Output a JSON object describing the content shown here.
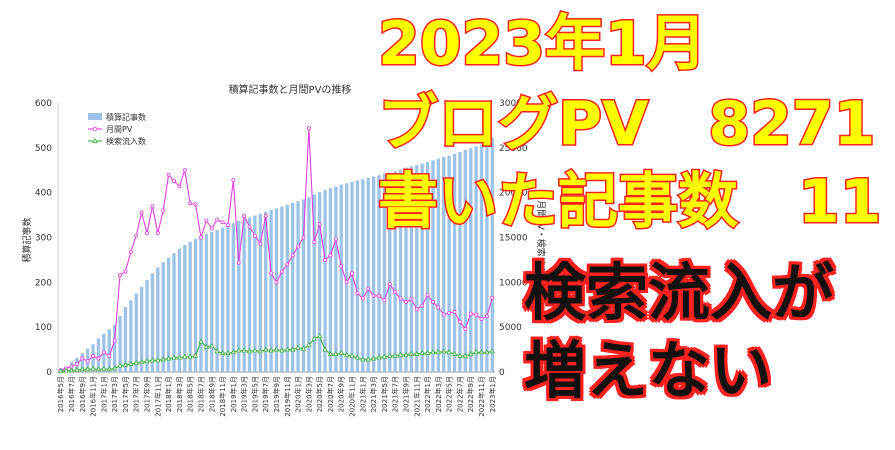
{
  "chart_data": {
    "type": "bar+line",
    "title": "積算記事数と月間PVの推移",
    "ylabel": "積算記事数",
    "y2label": "月間PV・検索流入数",
    "ylim": [
      0,
      600
    ],
    "y2lim": [
      0,
      30000
    ],
    "yticks": [
      "0",
      "100",
      "200",
      "300",
      "400",
      "500",
      "600"
    ],
    "y2ticks": [
      "0",
      "5000",
      "10000",
      "15000",
      "20000",
      "25000",
      "30000"
    ],
    "legend_position": "top-left",
    "categories": [
      "2016年5月",
      "2016年6月",
      "2016年7月",
      "2016年8月",
      "2016年9月",
      "2016年10月",
      "2016年11月",
      "2016年12月",
      "2017年1月",
      "2017年2月",
      "2017年3月",
      "2017年4月",
      "2017年5月",
      "2017年6月",
      "2017年7月",
      "2017年8月",
      "2017年9月",
      "2017年10月",
      "2017年11月",
      "2017年12月",
      "2018年1月",
      "2018年2月",
      "2018年3月",
      "2018年4月",
      "2018年5月",
      "2018年6月",
      "2018年7月",
      "2018年8月",
      "2018年9月",
      "2018年10月",
      "2018年11月",
      "2018年12月",
      "2019年1月",
      "2019年2月",
      "2019年3月",
      "2019年4月",
      "2019年5月",
      "2019年6月",
      "2019年7月",
      "2019年8月",
      "2019年9月",
      "2019年10月",
      "2019年11月",
      "2019年12月",
      "2020年1月",
      "2020年2月",
      "2020年3月",
      "2020年4月",
      "2020年5月",
      "2020年6月",
      "2020年7月",
      "2020年8月",
      "2020年9月",
      "2020年10月",
      "2020年11月",
      "2020年12月",
      "2021年1月",
      "2021年2月",
      "2021年3月",
      "2021年4月",
      "2021年5月",
      "2021年6月",
      "2021年7月",
      "2021年8月",
      "2021年9月",
      "2021年10月",
      "2021年11月",
      "2021年12月",
      "2022年1月",
      "2022年2月",
      "2022年3月",
      "2022年4月",
      "2022年5月",
      "2022年6月",
      "2022年7月",
      "2022年8月",
      "2022年9月",
      "2022年10月",
      "2022年11月",
      "2022年12月",
      "2023年1月"
    ],
    "tick_labels": [
      "2016年5月",
      "2016年7月",
      "2016年9月",
      "2016年11月",
      "2017年1月",
      "2017年3月",
      "2017年5月",
      "2017年7月",
      "2017年9月",
      "2017年11月",
      "2018年1月",
      "2018年3月",
      "2018年5月",
      "2018年7月",
      "2018年9月",
      "2018年11月",
      "2019年1月",
      "2019年3月",
      "2019年5月",
      "2019年7月",
      "2019年9月",
      "2019年11月",
      "2020年1月",
      "2020年3月",
      "2020年5月",
      "2020年7月",
      "2020年9月",
      "2020年11月",
      "2021年1月",
      "2021年3月",
      "2021年5月",
      "2021年7月",
      "2021年9月",
      "2021年11月",
      "2022年1月",
      "2022年3月",
      "2022年5月",
      "2022年7月",
      "2022年9月",
      "2022年11月",
      "2023年1月"
    ],
    "series": [
      {
        "name": "積算記事数",
        "type": "bar",
        "axis": "left",
        "color": "#9dc3e6",
        "values": [
          5,
          12,
          22,
          32,
          42,
          52,
          62,
          75,
          85,
          95,
          105,
          125,
          145,
          160,
          175,
          190,
          205,
          220,
          233,
          245,
          255,
          265,
          275,
          283,
          290,
          297,
          303,
          308,
          312,
          317,
          322,
          327,
          332,
          337,
          341,
          345,
          349,
          353,
          357,
          361,
          365,
          369,
          373,
          377,
          381,
          385,
          390,
          396,
          401,
          406,
          410,
          414,
          418,
          421,
          424,
          427,
          430,
          433,
          436,
          439,
          442,
          445,
          448,
          452,
          456,
          459,
          462,
          465,
          468,
          472,
          476,
          480,
          483,
          487,
          491,
          495,
          499,
          503,
          507,
          512,
          523
        ]
      },
      {
        "name": "月間PV",
        "type": "line",
        "axis": "right",
        "color": "#e040e0",
        "values": [
          200,
          400,
          600,
          900,
          1500,
          1200,
          1800,
          1500,
          2200,
          1800,
          3500,
          10800,
          11200,
          13400,
          15200,
          17800,
          15500,
          18500,
          15500,
          18000,
          22000,
          21300,
          20700,
          22500,
          18800,
          18700,
          15000,
          16900,
          16000,
          17000,
          16700,
          16400,
          21400,
          12200,
          17400,
          16200,
          15200,
          14300,
          17400,
          11000,
          10000,
          11200,
          12000,
          13000,
          14000,
          15000,
          27200,
          14500,
          16500,
          12500,
          13000,
          14800,
          11800,
          10000,
          11000,
          8800,
          8200,
          9300,
          8500,
          8500,
          8000,
          9800,
          8900,
          8200,
          7800,
          8100,
          7000,
          7400,
          8600,
          7800,
          7200,
          6400,
          6600,
          6700,
          5600,
          4800,
          6500,
          6400,
          5900,
          6200,
          8271
        ]
      },
      {
        "name": "検索流入数",
        "type": "line",
        "axis": "right",
        "color": "#40b040",
        "values": [
          100,
          150,
          200,
          250,
          300,
          300,
          350,
          300,
          350,
          300,
          400,
          700,
          800,
          900,
          1000,
          1100,
          1200,
          1300,
          1300,
          1400,
          1500,
          1600,
          1600,
          1700,
          1700,
          1800,
          3400,
          2800,
          2900,
          2300,
          2100,
          2100,
          2200,
          2400,
          2400,
          2300,
          2400,
          2300,
          2500,
          2400,
          2500,
          2400,
          2500,
          2500,
          2700,
          2600,
          3000,
          3700,
          4000,
          2500,
          2000,
          2000,
          2100,
          1900,
          1800,
          1600,
          1400,
          1400,
          1500,
          1600,
          1700,
          1800,
          1800,
          1900,
          1900,
          2000,
          2000,
          2100,
          2100,
          2200,
          2200,
          2300,
          2200,
          2000,
          1800,
          1800,
          2000,
          2200,
          2200,
          2200,
          2300
        ]
      }
    ]
  },
  "overlay": {
    "line1": "2023年1月",
    "line2": "ブログPV　8271",
    "line3": "書いた記事数　11",
    "line4": "検索流入が",
    "line5": "増えない"
  },
  "colors": {
    "overlay_fill": "#ffff00",
    "overlay_stroke": "#ff2020",
    "overlay_dark": "#111111"
  }
}
